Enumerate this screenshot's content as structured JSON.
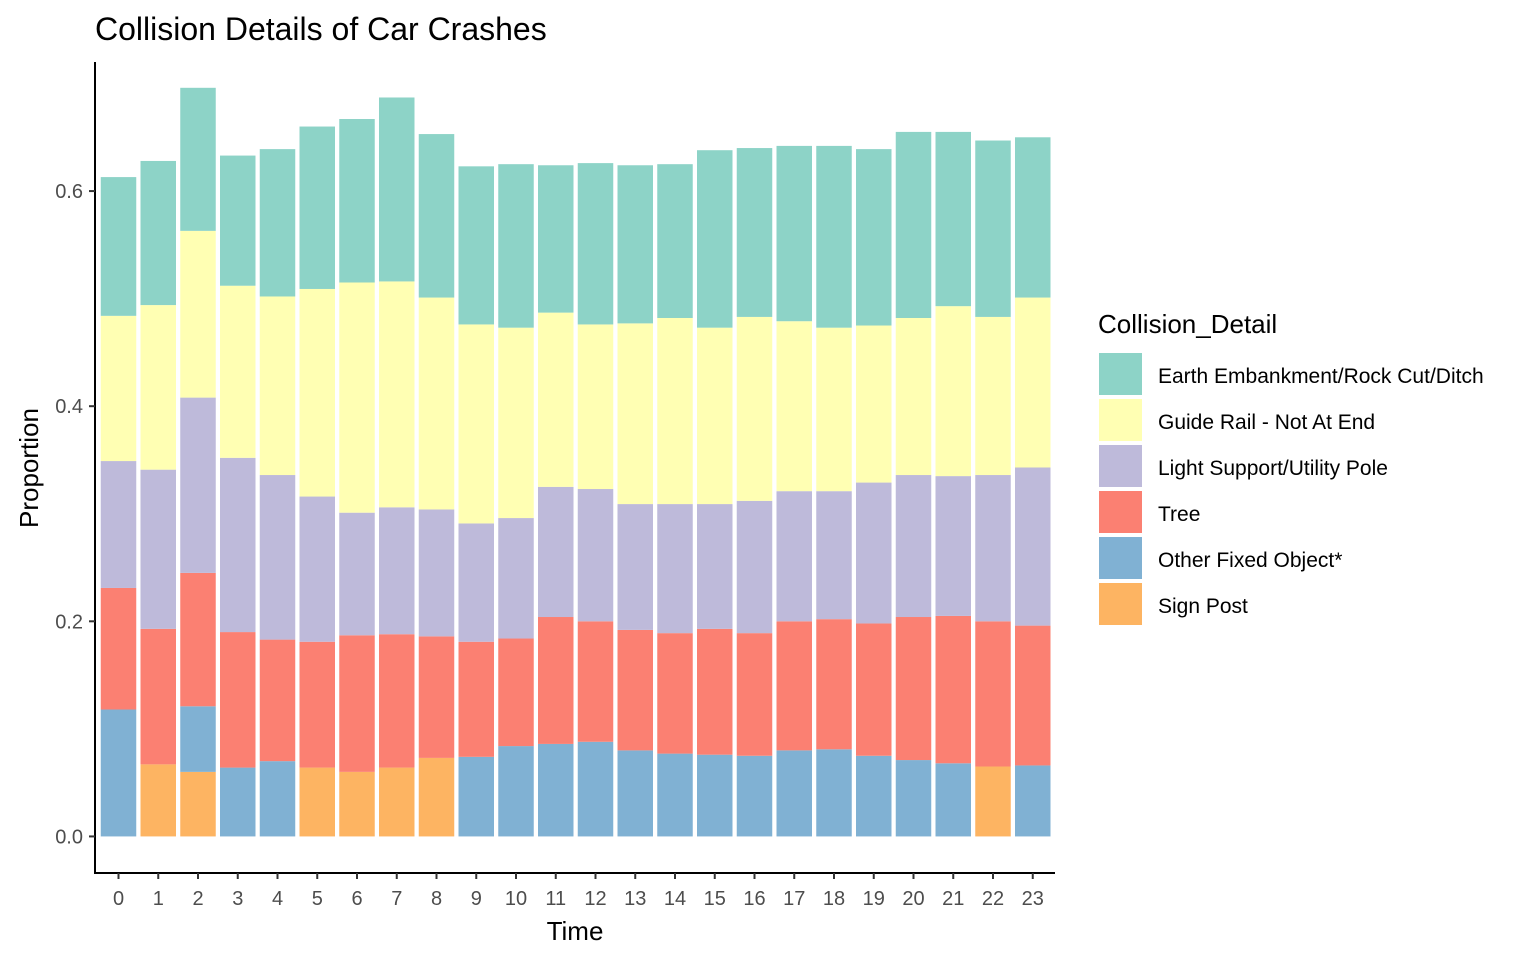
{
  "chart_data": {
    "type": "bar",
    "stacked": true,
    "title": "Collision Details of Car Crashes",
    "xlabel": "Time",
    "ylabel": "Proportion",
    "ylim": [
      -0.034,
      0.72
    ],
    "y_ticks": [
      0.0,
      0.2,
      0.4,
      0.6
    ],
    "y_tick_labels": [
      "0.0",
      "0.2",
      "0.4",
      "0.6"
    ],
    "grid": false,
    "legend_title": "Collision_Detail",
    "legend_position": "right",
    "categories": [
      "0",
      "1",
      "2",
      "3",
      "4",
      "5",
      "6",
      "7",
      "8",
      "9",
      "10",
      "11",
      "12",
      "13",
      "14",
      "15",
      "16",
      "17",
      "18",
      "19",
      "20",
      "21",
      "22",
      "23"
    ],
    "legend": [
      {
        "name": "Earth Embankment/Rock Cut/Ditch",
        "color": "#8dd3c7"
      },
      {
        "name": "Guide Rail - Not At End",
        "color": "#ffffb3"
      },
      {
        "name": "Light Support/Utility Pole",
        "color": "#bebada"
      },
      {
        "name": "Tree",
        "color": "#fb8072"
      },
      {
        "name": "Other Fixed Object*",
        "color": "#80b1d3"
      },
      {
        "name": "Sign Post",
        "color": "#fdb462"
      }
    ],
    "stack_segments": [
      [
        "Other Fixed Object*",
        "Tree",
        "Light Support/Utility Pole",
        "Guide Rail - Not At End",
        "Earth Embankment/Rock Cut/Ditch"
      ],
      [
        "Sign Post",
        "Tree",
        "Light Support/Utility Pole",
        "Guide Rail - Not At End",
        "Earth Embankment/Rock Cut/Ditch"
      ],
      [
        "Sign Post",
        "Other Fixed Object*",
        "Tree",
        "Light Support/Utility Pole",
        "Guide Rail - Not At End",
        "Earth Embankment/Rock Cut/Ditch"
      ],
      [
        "Other Fixed Object*",
        "Tree",
        "Light Support/Utility Pole",
        "Guide Rail - Not At End",
        "Earth Embankment/Rock Cut/Ditch"
      ],
      [
        "Other Fixed Object*",
        "Tree",
        "Light Support/Utility Pole",
        "Guide Rail - Not At End",
        "Earth Embankment/Rock Cut/Ditch"
      ],
      [
        "Sign Post",
        "Tree",
        "Light Support/Utility Pole",
        "Guide Rail - Not At End",
        "Earth Embankment/Rock Cut/Ditch"
      ],
      [
        "Sign Post",
        "Tree",
        "Light Support/Utility Pole",
        "Guide Rail - Not At End",
        "Earth Embankment/Rock Cut/Ditch"
      ],
      [
        "Sign Post",
        "Tree",
        "Light Support/Utility Pole",
        "Guide Rail - Not At End",
        "Earth Embankment/Rock Cut/Ditch"
      ],
      [
        "Sign Post",
        "Tree",
        "Light Support/Utility Pole",
        "Guide Rail - Not At End",
        "Earth Embankment/Rock Cut/Ditch"
      ],
      [
        "Other Fixed Object*",
        "Tree",
        "Light Support/Utility Pole",
        "Guide Rail - Not At End",
        "Earth Embankment/Rock Cut/Ditch"
      ],
      [
        "Other Fixed Object*",
        "Tree",
        "Light Support/Utility Pole",
        "Guide Rail - Not At End",
        "Earth Embankment/Rock Cut/Ditch"
      ],
      [
        "Other Fixed Object*",
        "Tree",
        "Light Support/Utility Pole",
        "Guide Rail - Not At End",
        "Earth Embankment/Rock Cut/Ditch"
      ],
      [
        "Other Fixed Object*",
        "Tree",
        "Light Support/Utility Pole",
        "Guide Rail - Not At End",
        "Earth Embankment/Rock Cut/Ditch"
      ],
      [
        "Other Fixed Object*",
        "Tree",
        "Light Support/Utility Pole",
        "Guide Rail - Not At End",
        "Earth Embankment/Rock Cut/Ditch"
      ],
      [
        "Other Fixed Object*",
        "Tree",
        "Light Support/Utility Pole",
        "Guide Rail - Not At End",
        "Earth Embankment/Rock Cut/Ditch"
      ],
      [
        "Other Fixed Object*",
        "Tree",
        "Light Support/Utility Pole",
        "Guide Rail - Not At End",
        "Earth Embankment/Rock Cut/Ditch"
      ],
      [
        "Other Fixed Object*",
        "Tree",
        "Light Support/Utility Pole",
        "Guide Rail - Not At End",
        "Earth Embankment/Rock Cut/Ditch"
      ],
      [
        "Other Fixed Object*",
        "Tree",
        "Light Support/Utility Pole",
        "Guide Rail - Not At End",
        "Earth Embankment/Rock Cut/Ditch"
      ],
      [
        "Other Fixed Object*",
        "Tree",
        "Light Support/Utility Pole",
        "Guide Rail - Not At End",
        "Earth Embankment/Rock Cut/Ditch"
      ],
      [
        "Other Fixed Object*",
        "Tree",
        "Light Support/Utility Pole",
        "Guide Rail - Not At End",
        "Earth Embankment/Rock Cut/Ditch"
      ],
      [
        "Other Fixed Object*",
        "Tree",
        "Light Support/Utility Pole",
        "Guide Rail - Not At End",
        "Earth Embankment/Rock Cut/Ditch"
      ],
      [
        "Other Fixed Object*",
        "Tree",
        "Light Support/Utility Pole",
        "Guide Rail - Not At End",
        "Earth Embankment/Rock Cut/Ditch"
      ],
      [
        "Sign Post",
        "Tree",
        "Light Support/Utility Pole",
        "Guide Rail - Not At End",
        "Earth Embankment/Rock Cut/Ditch"
      ],
      [
        "Other Fixed Object*",
        "Tree",
        "Light Support/Utility Pole",
        "Guide Rail - Not At End",
        "Earth Embankment/Rock Cut/Ditch"
      ]
    ],
    "stack_values": [
      [
        0.118,
        0.113,
        0.118,
        0.135,
        0.129
      ],
      [
        0.067,
        0.126,
        0.148,
        0.153,
        0.134
      ],
      [
        0.06,
        0.061,
        0.124,
        0.163,
        0.155,
        0.133
      ],
      [
        0.064,
        0.126,
        0.162,
        0.16,
        0.121
      ],
      [
        0.07,
        0.113,
        0.153,
        0.166,
        0.137
      ],
      [
        0.064,
        0.117,
        0.135,
        0.193,
        0.151
      ],
      [
        0.06,
        0.127,
        0.114,
        0.214,
        0.152
      ],
      [
        0.064,
        0.124,
        0.118,
        0.21,
        0.171
      ],
      [
        0.073,
        0.113,
        0.118,
        0.197,
        0.152
      ],
      [
        0.074,
        0.107,
        0.11,
        0.185,
        0.147
      ],
      [
        0.084,
        0.1,
        0.112,
        0.177,
        0.152
      ],
      [
        0.086,
        0.118,
        0.121,
        0.162,
        0.137
      ],
      [
        0.088,
        0.112,
        0.123,
        0.153,
        0.15
      ],
      [
        0.08,
        0.112,
        0.117,
        0.168,
        0.147
      ],
      [
        0.077,
        0.112,
        0.12,
        0.173,
        0.143
      ],
      [
        0.076,
        0.117,
        0.116,
        0.164,
        0.165
      ],
      [
        0.075,
        0.114,
        0.123,
        0.171,
        0.157
      ],
      [
        0.08,
        0.12,
        0.121,
        0.158,
        0.163
      ],
      [
        0.081,
        0.121,
        0.119,
        0.152,
        0.169
      ],
      [
        0.075,
        0.123,
        0.131,
        0.146,
        0.164
      ],
      [
        0.071,
        0.133,
        0.132,
        0.146,
        0.173
      ],
      [
        0.068,
        0.137,
        0.13,
        0.158,
        0.162
      ],
      [
        0.065,
        0.135,
        0.136,
        0.147,
        0.164
      ],
      [
        0.066,
        0.13,
        0.147,
        0.158,
        0.149
      ]
    ]
  }
}
